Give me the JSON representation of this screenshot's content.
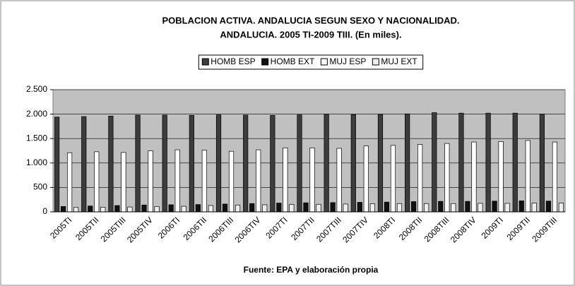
{
  "chart_data": {
    "type": "bar",
    "title": [
      "POBLACION ACTIVA. ANDALUCIA SEGUN SEXO Y NACIONALIDAD.",
      "ANDALUCIA. 2005 TI-2009 TIII. (En miles)."
    ],
    "source": "Fuente: EPA y elaboración propia",
    "categories": [
      "2005TI",
      "2005TII",
      "2005TIII",
      "2005TIV",
      "2006TI",
      "2006TII",
      "2006TIII",
      "2006TIV",
      "2007TI",
      "2007TII",
      "2007TIII",
      "2007TIV",
      "2008TI",
      "2008TII",
      "2008TIII",
      "2008TIV",
      "2009TI",
      "2009TII",
      "2009TIII"
    ],
    "series": [
      {
        "name": "HOMB ESP",
        "color": "#3c3c3c",
        "values": [
          1940,
          1950,
          1960,
          1980,
          1980,
          1975,
          1985,
          1980,
          1975,
          1985,
          2000,
          1990,
          1995,
          2005,
          2030,
          2020,
          2020,
          2020,
          2000
        ]
      },
      {
        "name": "HOMB EXT",
        "color": "#111111",
        "values": [
          110,
          120,
          130,
          140,
          145,
          150,
          160,
          170,
          180,
          185,
          190,
          195,
          200,
          210,
          215,
          215,
          220,
          225,
          220
        ]
      },
      {
        "name": "MUJ ESP",
        "color": "#ffffff",
        "values": [
          1210,
          1230,
          1215,
          1250,
          1270,
          1260,
          1240,
          1270,
          1310,
          1310,
          1300,
          1350,
          1360,
          1380,
          1400,
          1430,
          1440,
          1460,
          1430
        ]
      },
      {
        "name": "MUJ EXT",
        "color": "#eeeeee",
        "values": [
          90,
          95,
          100,
          110,
          115,
          130,
          140,
          145,
          150,
          155,
          160,
          165,
          170,
          170,
          170,
          175,
          175,
          180,
          180
        ]
      }
    ],
    "ylim": [
      0,
      2500
    ],
    "yticks": [
      0,
      500,
      {
        "value": 1000,
        "label": "1.000"
      },
      {
        "value": 1500,
        "label": "1.500"
      },
      {
        "value": 2000,
        "label": "2.000"
      },
      {
        "value": 2500,
        "label": "2.500"
      }
    ],
    "grid": true,
    "legend": "top"
  }
}
